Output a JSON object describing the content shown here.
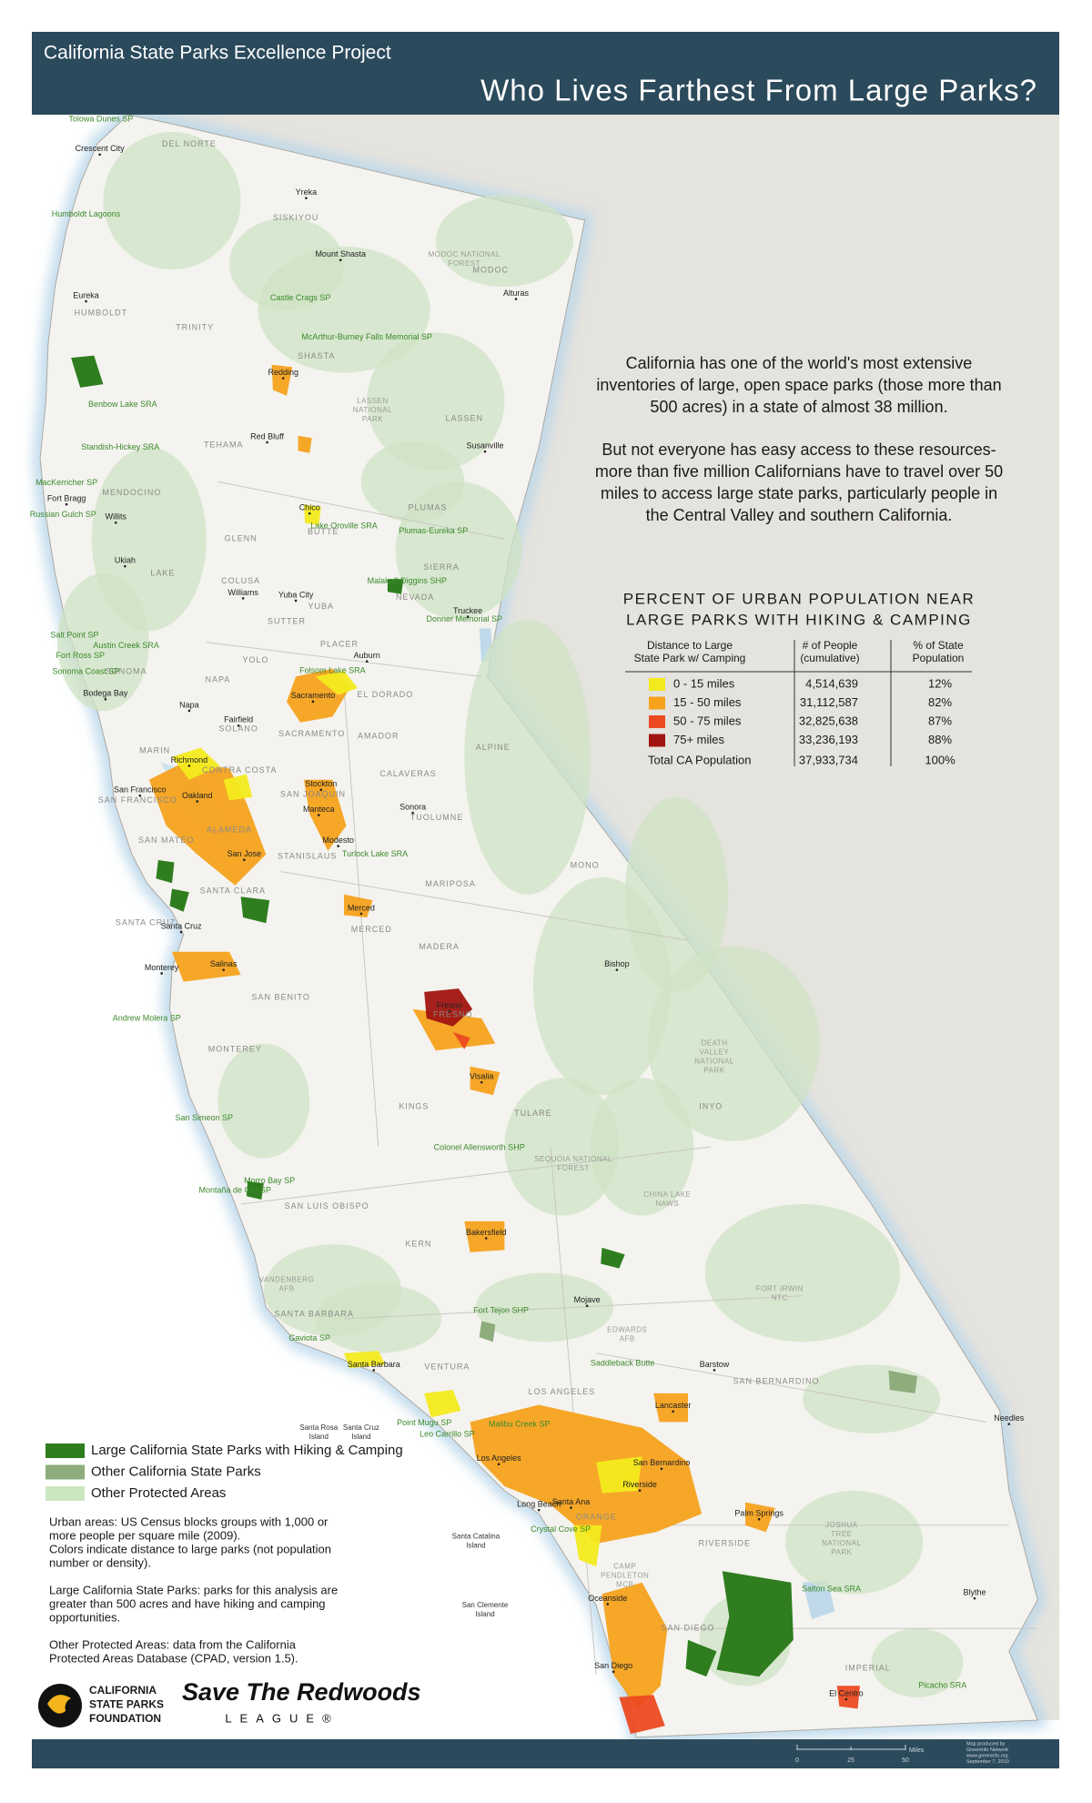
{
  "header": {
    "kicker": "California State Parks Excellence Project",
    "title": "Who Lives Farthest From Large Parks?"
  },
  "intro": {
    "paragraphs": [
      [
        "California has one of the world's most extensive",
        "inventories of large, open space parks (those more than",
        "500 acres) in a state of almost 38 million."
      ],
      [
        "But not everyone has easy access to these resources-",
        "more than five million Californians have to travel over 50",
        "miles to access large state parks, particularly people in",
        "the Central Valley and southern California."
      ]
    ]
  },
  "table": {
    "title": [
      "PERCENT OF URBAN POPULATION NEAR",
      "LARGE PARKS WITH HIKING & CAMPING"
    ],
    "columns": [
      [
        "Distance to Large",
        "State Park w/ Camping"
      ],
      [
        "# of People",
        "(cumulative)"
      ],
      [
        "% of State",
        "Population"
      ]
    ],
    "rows": [
      [
        "0 - 15 miles",
        "4,514,639",
        "12%"
      ],
      [
        "15 - 50 miles",
        "31,112,587",
        "82%"
      ],
      [
        "50 - 75 miles",
        "32,825,638",
        "87%"
      ],
      [
        "75+ miles",
        "33,236,193",
        "88%"
      ],
      [
        "Total CA Population",
        "37,933,734",
        "100%"
      ]
    ],
    "row_colors": [
      "#f3ea1d",
      "#f6a21c",
      "#ec4a21",
      "#a11410"
    ]
  },
  "legend": {
    "items": [
      {
        "label": "Large California State Parks with Hiking & Camping",
        "color": "#2f7d1f"
      },
      {
        "label": "Other California State Parks",
        "color": "#8eac7c"
      },
      {
        "label": "Other Protected Areas",
        "color": "#cbe7c1"
      }
    ]
  },
  "notes": {
    "paragraphs": [
      [
        "Urban areas: US Census blocks groups with 1,000 or",
        "more people per square mile (2009).",
        "Colors indicate distance to large parks (not population",
        "number or density)."
      ],
      [
        "Large California State Parks: parks for this analysis are",
        "greater than 500 acres and have hiking and camping",
        "opportunities."
      ],
      [
        "Other Protected Areas: data from the California",
        "Protected Areas Database (CPAD, version 1.5)."
      ]
    ]
  },
  "logos": {
    "foundation": [
      "CALIFORNIA",
      "STATE PARKS",
      "FOUNDATION"
    ],
    "league_name": "Save The Redwoods",
    "league_sub": "LEAGUE®"
  },
  "footer": {
    "scale_unit": "Miles",
    "scale_ticks": [
      "0",
      "25",
      "50"
    ],
    "credits": [
      "Map produced by",
      "GreenInfo Network",
      "www.greeninfo.org",
      "September 7, 2010"
    ]
  },
  "map": {
    "cities": [
      "Crescent City",
      "Yreka",
      "Mount Shasta",
      "Alturas",
      "Eureka",
      "Redding",
      "Red Bluff",
      "Susanville",
      "Fort Bragg",
      "Willits",
      "Chico",
      "Ukiah",
      "Williams",
      "Yuba City",
      "Truckee",
      "Auburn",
      "Sacramento",
      "Napa",
      "Fairfield",
      "Bodega Bay",
      "Richmond",
      "San Francisco",
      "Oakland",
      "Stockton",
      "Manteca",
      "Sonora",
      "San Jose",
      "Modesto",
      "Merced",
      "Santa Cruz",
      "Salinas",
      "Monterey",
      "Bishop",
      "Fresno",
      "Visalia",
      "Bakersfield",
      "Mojave",
      "Barstow",
      "Santa Barbara",
      "Lancaster",
      "Needles",
      "Los Angeles",
      "San Bernardino",
      "Riverside",
      "Long Beach",
      "Santa Ana",
      "Palm Springs",
      "Oceanside",
      "Blythe",
      "San Diego",
      "El Centro"
    ],
    "regions": [
      "DEL NORTE",
      "SISKIYOU",
      "MODOC",
      "HUMBOLDT",
      "TRINITY",
      "SHASTA",
      "LASSEN",
      "TEHAMA",
      "MENDOCINO",
      "PLUMAS",
      "GLENN",
      "BUTTE",
      "SIERRA",
      "COLUSA",
      "LAKE",
      "NEVADA",
      "YUBA",
      "SUTTER",
      "PLACER",
      "SONOMA",
      "YOLO",
      "NAPA",
      "EL DORADO",
      "ALPINE",
      "SOLANO",
      "SACRAMENTO",
      "AMADOR",
      "MARIN",
      "CALAVERAS",
      "CONTRA COSTA",
      "SAN JOAQUIN",
      "SAN FRANCISCO",
      "TUOLUMNE",
      "ALAMEDA",
      "MONO",
      "SAN MATEO",
      "STANISLAUS",
      "MARIPOSA",
      "SANTA CLARA",
      "SANTA CRUZ",
      "MERCED",
      "MADERA",
      "SAN BENITO",
      "FRESNO",
      "MONTEREY",
      "INYO",
      "KINGS",
      "TULARE",
      "SAN LUIS OBISPO",
      "KERN",
      "SANTA BARBARA",
      "VENTURA",
      "LOS ANGELES",
      "SAN BERNARDINO",
      "ORANGE",
      "RIVERSIDE",
      "SAN DIEGO",
      "IMPERIAL"
    ],
    "parks": [
      "Tolowa Dunes SP",
      "Humboldt Lagoons",
      "Castle Crags SP",
      "McArthur-Burney Falls Memorial SP",
      "Benbow Lake SRA",
      "Standish-Hickey SRA",
      "MacKerricher SP",
      "Russian Gulch SP",
      "Lake Oroville SRA",
      "Plumas-Eureka SP",
      "Malakoff Diggins SHP",
      "Donner Memorial SP",
      "Salt Point SP",
      "Austin Creek SRA",
      "Fort Ross SP",
      "Sonoma Coast SP",
      "Folsom Lake SRA",
      "Turlock Lake SRA",
      "Andrew Molera SP",
      "San Simeon SP",
      "Morro Bay SP",
      "Montaña de Oro SP",
      "Colonel Allensworth SHP",
      "Fort Tejon SHP",
      "Gaviota SP",
      "Saddleback Butte",
      "Point Mugu SP",
      "Leo Carrillo SP",
      "Malibu Creek SP",
      "Crystal Cove SP",
      "Salton Sea SRA",
      "Picacho SRA"
    ],
    "protected_areas": [
      [
        "MODOC NATIONAL",
        "FOREST"
      ],
      [
        "LASSEN",
        "NATIONAL",
        "PARK"
      ],
      [
        "SEQUOIA NATIONAL",
        "FOREST"
      ],
      [
        "DEATH",
        "VALLEY",
        "NATIONAL",
        "PARK"
      ],
      [
        "JOSHUA",
        "TREE",
        "NATIONAL",
        "PARK"
      ],
      [
        "CHINA LAKE",
        "NAWS"
      ],
      [
        "FORT IRWIN",
        "NTC"
      ],
      [
        "EDWARDS",
        "AFB"
      ],
      [
        "CAMP",
        "PENDLETON",
        "MCB"
      ],
      [
        "VANDENBERG",
        "AFB"
      ]
    ],
    "islands": [
      [
        "Santa Rosa",
        "Island"
      ],
      [
        "Santa Cruz",
        "Island"
      ],
      [
        "Santa Catalina",
        "Island"
      ],
      [
        "San Clemente",
        "Island"
      ]
    ]
  }
}
